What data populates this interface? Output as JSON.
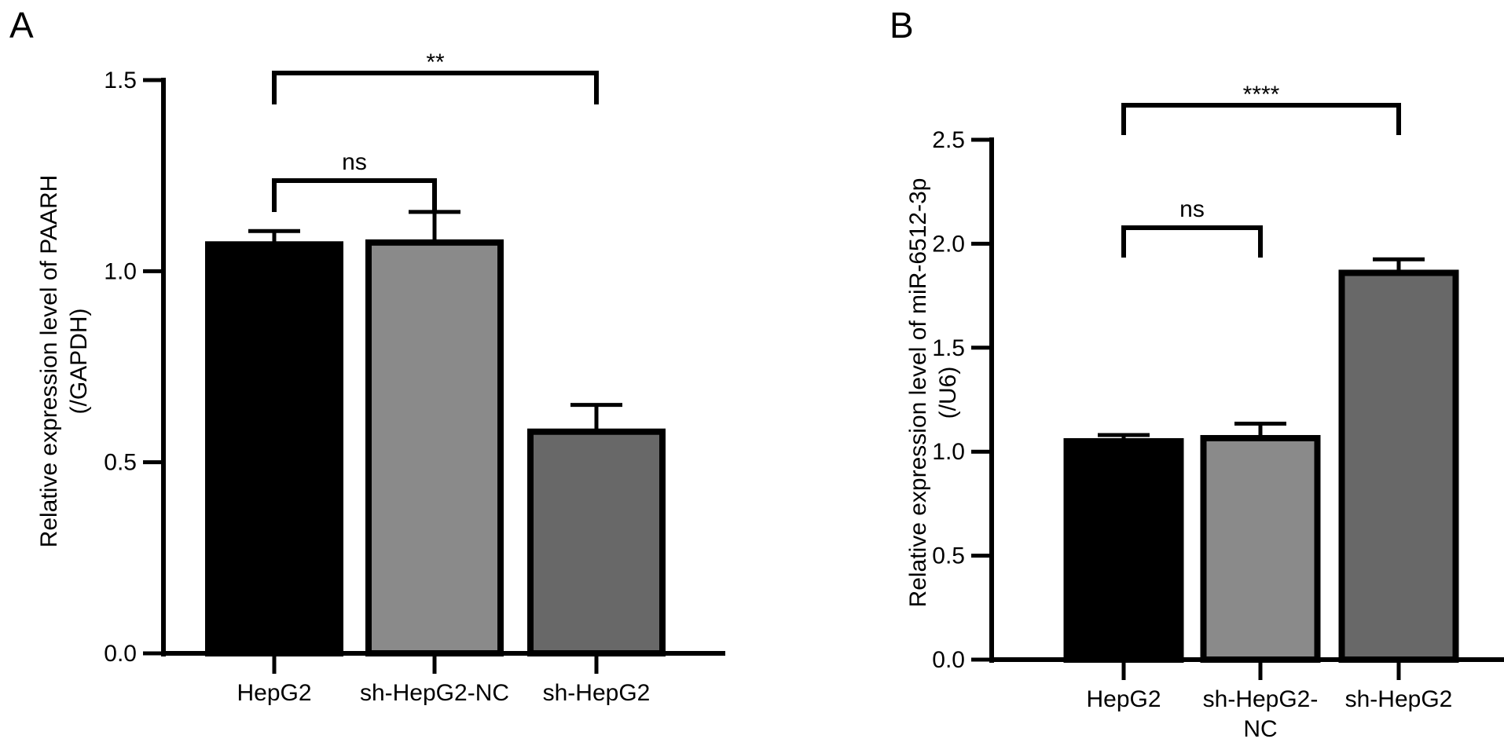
{
  "chart_data": [
    {
      "type": "bar",
      "panel_label": "A",
      "categories": [
        "HepG2",
        "sh-HepG2-NC",
        "sh-HepG2"
      ],
      "values": [
        1.07,
        1.075,
        0.58
      ],
      "error_upper": [
        1.105,
        1.155,
        0.65
      ],
      "ylabel": [
        "Relative expression level of PAARH",
        "(/GAPDH)"
      ],
      "ylim": [
        0,
        1.5
      ],
      "yticks": [
        "0.0",
        "0.5",
        "1.0",
        "1.5"
      ],
      "bar_colors": [
        "#000000",
        "#8a8a8a",
        "#686868"
      ],
      "significance": [
        {
          "from": 0,
          "to": 1,
          "label": "ns"
        },
        {
          "from": 0,
          "to": 2,
          "label": "**"
        }
      ],
      "grid": false
    },
    {
      "type": "bar",
      "panel_label": "B",
      "categories": [
        "HepG2",
        "sh-HepG2-NC",
        "sh-HepG2"
      ],
      "values": [
        1.05,
        1.065,
        1.86
      ],
      "error_upper": [
        1.08,
        1.135,
        1.925
      ],
      "ylabel": [
        "Relative expression level of miR-6512-3p",
        "(/U6)"
      ],
      "ylim": [
        0,
        2.5
      ],
      "yticks": [
        "0.0",
        "0.5",
        "1.0",
        "1.5",
        "2.0",
        "2.5"
      ],
      "bar_colors": [
        "#000000",
        "#8a8a8a",
        "#686868"
      ],
      "significance": [
        {
          "from": 0,
          "to": 1,
          "label": "ns"
        },
        {
          "from": 0,
          "to": 2,
          "label": "****"
        }
      ],
      "grid": false
    }
  ]
}
